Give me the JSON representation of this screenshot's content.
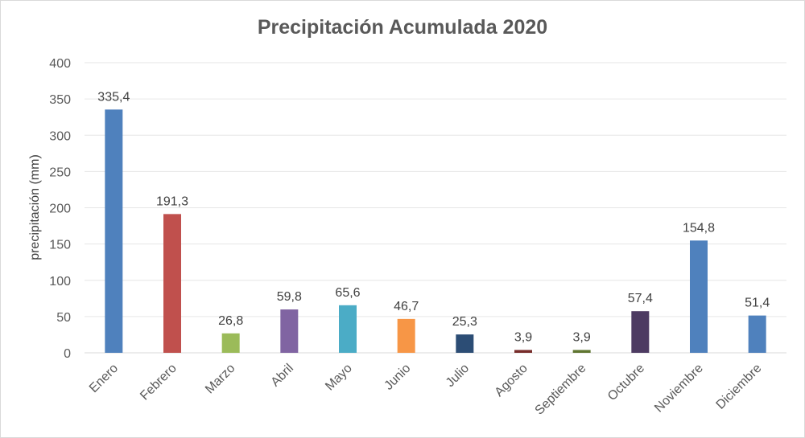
{
  "chart_data": {
    "type": "bar",
    "title": "Precipitación Acumulada 2020",
    "xlabel": "",
    "ylabel": "precipitación (mm)",
    "ylim": [
      0,
      400
    ],
    "yticks": [
      0,
      50,
      100,
      150,
      200,
      250,
      300,
      350,
      400
    ],
    "grid": true,
    "categories": [
      "Enero",
      "Febrero",
      "Marzo",
      "Abril",
      "Mayo",
      "Junio",
      "Julio",
      "Agosto",
      "Septiembre",
      "Octubre",
      "Noviembre",
      "Diciembre"
    ],
    "values": [
      335.4,
      191.3,
      26.8,
      59.8,
      65.6,
      46.7,
      25.3,
      3.9,
      3.9,
      57.4,
      154.8,
      51.4
    ],
    "data_labels": [
      "335,4",
      "191,3",
      "26,8",
      "59,8",
      "65,6",
      "46,7",
      "25,3",
      "3,9",
      "3,9",
      "57,4",
      "154,8",
      "51,4"
    ],
    "colors": [
      "#4F81BD",
      "#C0504D",
      "#9BBB59",
      "#8064A2",
      "#4BACC6",
      "#F79646",
      "#2C4D75",
      "#772C2A",
      "#5F7530",
      "#4D3B62",
      "#4F81BD",
      "#4F81BD"
    ]
  }
}
